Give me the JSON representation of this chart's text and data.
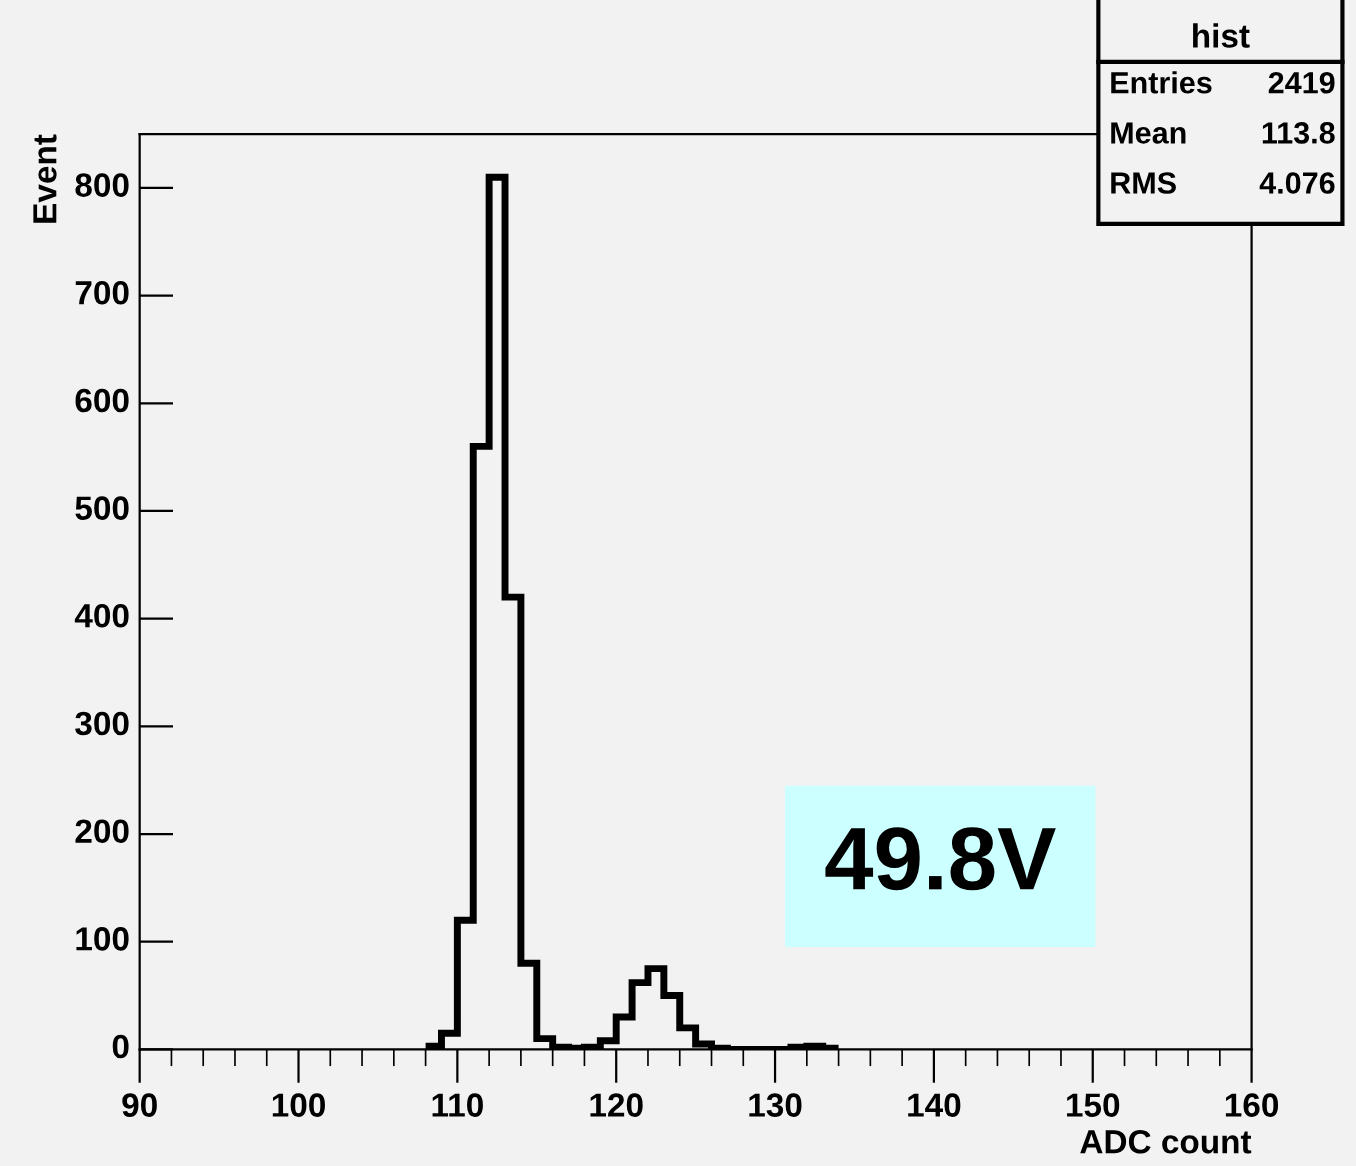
{
  "chart_data": {
    "type": "histogram",
    "xlabel": "ADC count",
    "ylabel": "Event",
    "bins": [
      108,
      109,
      110,
      111,
      112,
      113,
      114,
      115,
      116,
      117,
      118,
      119,
      120,
      121,
      122,
      123,
      124,
      125,
      126,
      127,
      128,
      129,
      130,
      131,
      132,
      133,
      134
    ],
    "values": [
      3,
      15,
      120,
      560,
      810,
      420,
      80,
      10,
      2,
      1,
      2,
      8,
      30,
      62,
      75,
      50,
      20,
      5,
      1,
      0,
      0,
      0,
      0,
      2,
      3,
      1
    ],
    "color": "#000000",
    "xlim": [
      90,
      160
    ],
    "xticks": [
      90,
      100,
      110,
      120,
      130,
      140,
      150,
      160
    ],
    "ylim": [
      0,
      850
    ],
    "yticks": [
      0,
      100,
      200,
      300,
      400,
      500,
      600,
      700,
      800
    ],
    "grid": false,
    "annotations": [
      "hist",
      "Entries",
      "2419",
      "Mean",
      "113.8",
      "RMS",
      "4.076",
      "49.8V"
    ]
  }
}
